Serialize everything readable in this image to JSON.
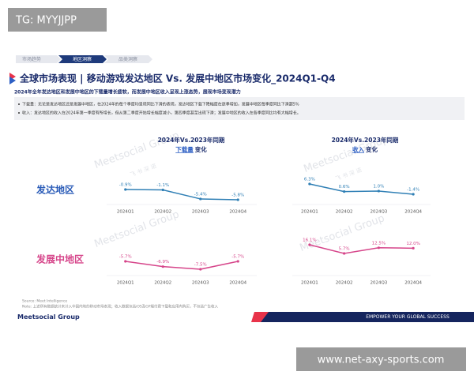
{
  "overlay_top": "TG: MYYJJPP",
  "overlay_bottom": "www.net-axy-sports.com",
  "nav": [
    "市场趋势",
    "地区洞察",
    "品类洞察"
  ],
  "title": "全球市场表现 | 移动游戏发达地区 Vs. 发展中地区市场变化_2024Q1-Q4",
  "subtitle": "2024年全年发达地区和发展中地区的下载量增长疲软，而发展中地区收入呈现上涨态势，展现市场变现潜力",
  "bullets": [
    "下载量：无论是发达地区还是发展中地区，在2024年的每个季度均呈现同比下滑的表现，发达地区下载下降幅度在逐季增加，发展中地区每季度同比下滑超5%",
    "收入：发达地区的收入在2024年第一季度有所增长，但从第二季度开始增长幅度减小，第四季度甚至出现下滑；发展中地区的收入在各季度同比均有大幅增长。"
  ],
  "panels": [
    {
      "period": "2024年Vs.2023年同期",
      "metric": "下载量",
      "suffix": "变化"
    },
    {
      "period": "2024年Vs.2023年同期",
      "metric": "收入",
      "suffix": "变化"
    }
  ],
  "row_labels": [
    "发达地区",
    "发展中地区"
  ],
  "watermark": [
    "Meetsocial Group",
    "飞 书 深 诺"
  ],
  "source": "Source: Meet Intelligence",
  "note": "Note: 上述所有数据统计未计入中国内地的移动市场表现；收入数据包括iOS及GP端付费下载和应用内购买，不包括广告收入",
  "footer_logo": "Meetsocial Group",
  "footer_slogan": "EMPOWER YOUR GLOBAL SUCCESS",
  "chart_data": [
    {
      "type": "line",
      "categories": [
        "2024Q1",
        "2024Q2",
        "2024Q3",
        "2024Q4"
      ],
      "values": [
        -0.9,
        -1.1,
        -5.4,
        -5.8
      ],
      "value_labels": [
        "-0.9%",
        "-1.1%",
        "-5.4%",
        "-5.8%"
      ],
      "color": "#2f7fb5"
    },
    {
      "type": "line",
      "categories": [
        "2024Q1",
        "2024Q2",
        "2024Q3",
        "2024Q4"
      ],
      "values": [
        6.3,
        0.6,
        1.0,
        -1.4
      ],
      "value_labels": [
        "6.3%",
        "0.6%",
        "1.0%",
        "-1.4%"
      ],
      "color": "#2f7fb5"
    },
    {
      "type": "line",
      "categories": [
        "2024Q1",
        "2024Q2",
        "2024Q3",
        "2024Q4"
      ],
      "values": [
        -5.7,
        -6.9,
        -7.5,
        -5.7
      ],
      "value_labels": [
        "-5.7%",
        "-6.9%",
        "-7.5%",
        "-5.7%"
      ],
      "color": "#d6458a"
    },
    {
      "type": "line",
      "categories": [
        "2024Q1",
        "2024Q2",
        "2024Q3",
        "2024Q4"
      ],
      "values": [
        16.1,
        5.7,
        12.5,
        12.0
      ],
      "value_labels": [
        "16.1%",
        "5.7%",
        "12.5%",
        "12.0%"
      ],
      "color": "#d6458a"
    }
  ]
}
